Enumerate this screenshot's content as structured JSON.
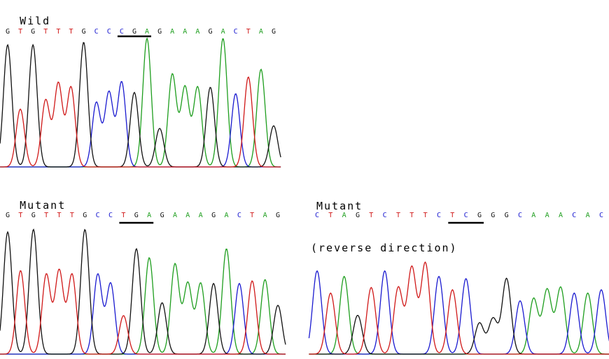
{
  "colors": {
    "A": "#1e9e1e",
    "C": "#1a1ad0",
    "G": "#111111",
    "T": "#d01818"
  },
  "panels": [
    {
      "id": "wild",
      "title_lines": [
        "Wild"
      ],
      "sequence": [
        "G",
        "T",
        "G",
        "T",
        "T",
        "T",
        "G",
        "C",
        "C",
        "C",
        "G",
        "A",
        "G",
        "A",
        "A",
        "A",
        "G",
        "A",
        "C",
        "T",
        "A",
        "G"
      ],
      "codon_underline": [
        9,
        11
      ],
      "peak_heights": [
        0.95,
        0.45,
        0.95,
        0.52,
        0.65,
        0.62,
        0.97,
        0.5,
        0.58,
        0.66,
        0.58,
        1.0,
        0.3,
        0.72,
        0.62,
        0.62,
        0.62,
        1.0,
        0.57,
        0.7,
        0.76,
        0.32
      ]
    },
    {
      "id": "mutant",
      "title_lines": [
        "Mutant"
      ],
      "sequence": [
        "G",
        "T",
        "G",
        "T",
        "T",
        "T",
        "G",
        "C",
        "C",
        "T",
        "G",
        "A",
        "G",
        "A",
        "A",
        "A",
        "G",
        "A",
        "C",
        "T",
        "A",
        "G"
      ],
      "codon_underline": [
        9,
        11
      ],
      "peak_heights": [
        0.95,
        0.65,
        0.97,
        0.62,
        0.65,
        0.62,
        0.97,
        0.62,
        0.55,
        0.3,
        0.82,
        0.75,
        0.4,
        0.7,
        0.55,
        0.55,
        0.55,
        0.82,
        0.55,
        0.57,
        0.58,
        0.38
      ]
    },
    {
      "id": "mutant-reverse",
      "title_lines": [
        "Mutant",
        "(reverse direction)"
      ],
      "sequence": [
        "C",
        "T",
        "A",
        "G",
        "T",
        "C",
        "T",
        "T",
        "T",
        "C",
        "T",
        "C",
        "G",
        "G",
        "G",
        "C",
        "A",
        "A",
        "A",
        "C",
        "A",
        "C"
      ],
      "codon_underline": [
        10,
        12
      ],
      "peak_heights": [
        0.75,
        0.55,
        0.7,
        0.35,
        0.6,
        0.75,
        0.6,
        0.78,
        0.82,
        0.7,
        0.58,
        0.68,
        0.28,
        0.32,
        0.68,
        0.48,
        0.5,
        0.58,
        0.6,
        0.55,
        0.55,
        0.58
      ]
    }
  ]
}
